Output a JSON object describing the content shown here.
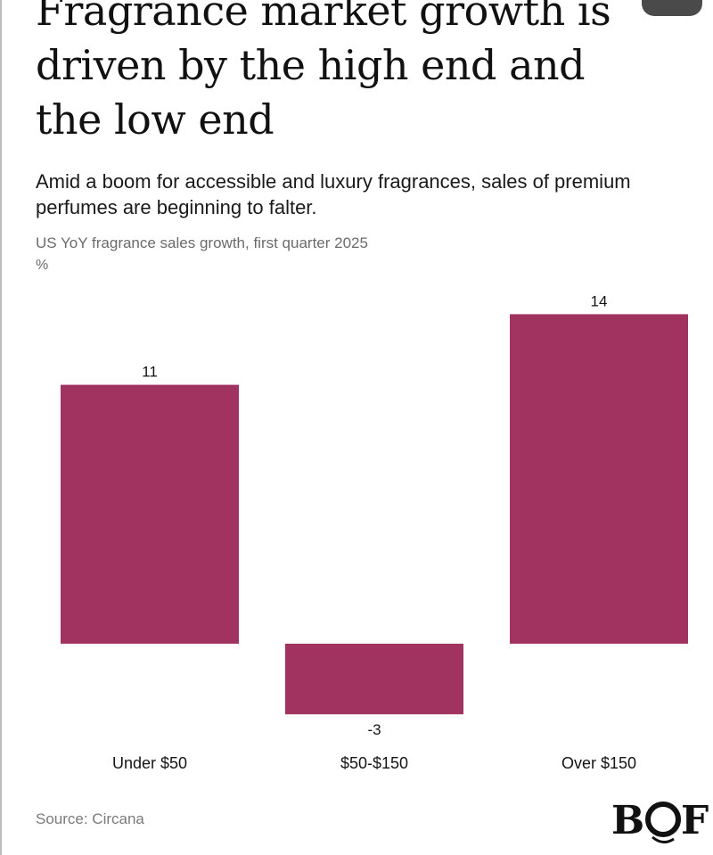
{
  "header": {
    "title": "Fragrance market growth is driven by the high end and the low end",
    "subtitle": "Amid a boom for accessible and luxury fragrances, sales of premium perfumes are beginning to falter.",
    "metric_label": "US YoY fragrance sales growth, first quarter 2025",
    "unit_label": "%"
  },
  "chart_data": {
    "type": "bar",
    "categories": [
      "Under $50",
      "$50-$150",
      "Over $150"
    ],
    "values": [
      11,
      -3,
      14
    ],
    "data_labels": [
      "11",
      "-3",
      "14"
    ],
    "title": "US YoY fragrance sales growth, first quarter 2025",
    "xlabel": "",
    "ylabel": "%",
    "ylim": [
      -3,
      14
    ],
    "grid": false,
    "bar_color": "#A13360"
  },
  "footer": {
    "source": "Source: Circana",
    "logo_text": "BOF"
  },
  "colors": {
    "bar": "#A13360",
    "text": "#141414",
    "muted": "#6B6B6B"
  }
}
